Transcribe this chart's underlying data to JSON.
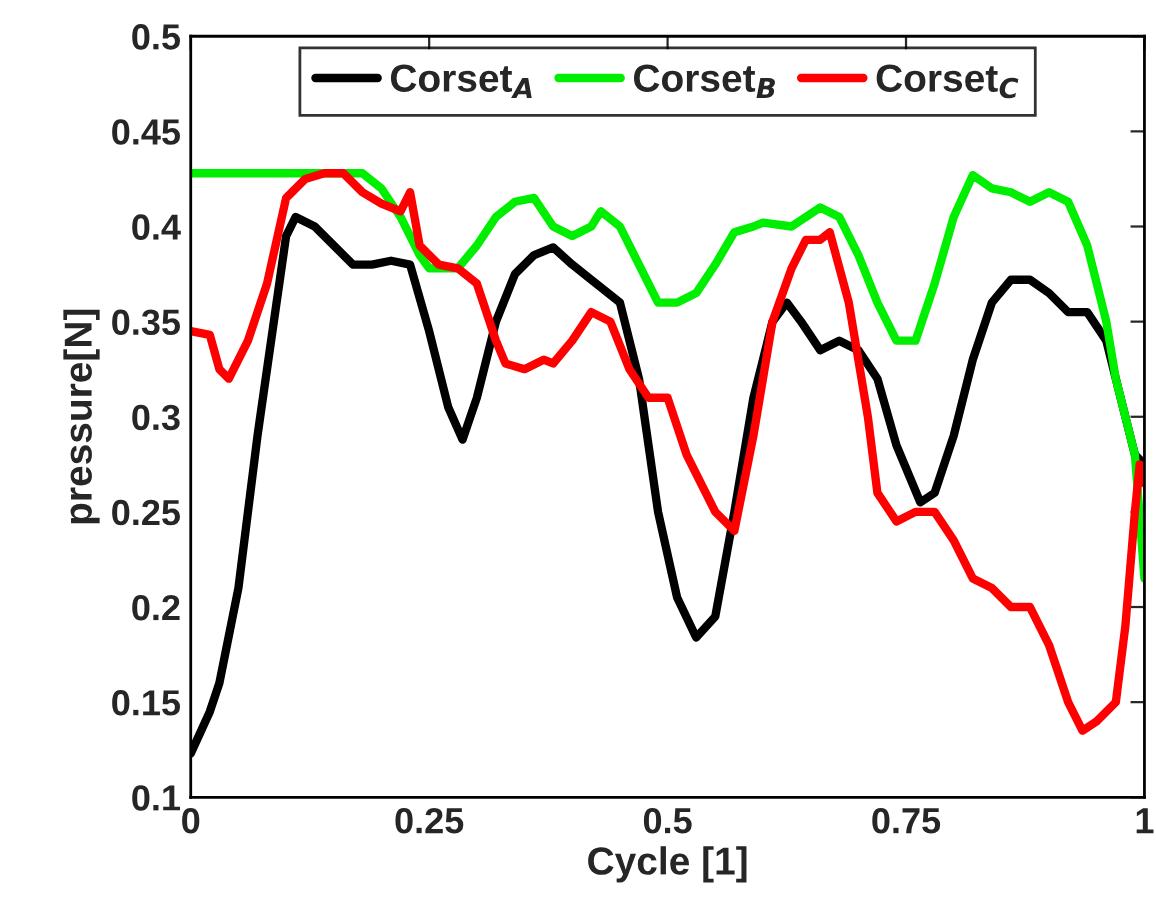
{
  "chart_data": {
    "type": "line",
    "xlabel": "Cycle [1]",
    "ylabel": "pressure[N]",
    "xlim": [
      0,
      1
    ],
    "ylim": [
      0.1,
      0.5
    ],
    "xticks": [
      0,
      0.25,
      0.5,
      0.75,
      1
    ],
    "yticks": [
      0.1,
      0.15,
      0.2,
      0.25,
      0.3,
      0.35,
      0.4,
      0.45,
      0.5
    ],
    "grid": false,
    "legend": "top",
    "marker": "none",
    "line_style": "solid",
    "series": [
      {
        "name": "Corset$_{A}$",
        "color": "#000000",
        "x": [
          0,
          0.02,
          0.03,
          0.05,
          0.07,
          0.09,
          0.1,
          0.11,
          0.13,
          0.15,
          0.17,
          0.19,
          0.21,
          0.23,
          0.25,
          0.27,
          0.285,
          0.3,
          0.32,
          0.34,
          0.36,
          0.38,
          0.4,
          0.42,
          0.45,
          0.47,
          0.49,
          0.51,
          0.53,
          0.55,
          0.57,
          0.59,
          0.61,
          0.625,
          0.64,
          0.66,
          0.68,
          0.7,
          0.72,
          0.74,
          0.765,
          0.78,
          0.8,
          0.82,
          0.84,
          0.86,
          0.88,
          0.9,
          0.92,
          0.94,
          0.96,
          0.98,
          0.99,
          1.0
        ],
        "values": [
          0.123,
          0.145,
          0.16,
          0.21,
          0.29,
          0.36,
          0.395,
          0.405,
          0.4,
          0.39,
          0.38,
          0.38,
          0.382,
          0.38,
          0.345,
          0.305,
          0.288,
          0.31,
          0.35,
          0.375,
          0.385,
          0.389,
          0.38,
          0.372,
          0.36,
          0.32,
          0.25,
          0.205,
          0.184,
          0.195,
          0.25,
          0.31,
          0.35,
          0.36,
          0.35,
          0.335,
          0.34,
          0.335,
          0.32,
          0.285,
          0.255,
          0.26,
          0.29,
          0.33,
          0.36,
          0.372,
          0.372,
          0.365,
          0.355,
          0.355,
          0.34,
          0.3,
          0.28,
          0.275
        ]
      },
      {
        "name": "Corset$_{B}$",
        "color": "#00ee00",
        "x": [
          0,
          0.18,
          0.2,
          0.22,
          0.24,
          0.25,
          0.28,
          0.3,
          0.32,
          0.34,
          0.36,
          0.38,
          0.4,
          0.42,
          0.43,
          0.45,
          0.47,
          0.49,
          0.51,
          0.53,
          0.55,
          0.57,
          0.59,
          0.6,
          0.63,
          0.66,
          0.68,
          0.7,
          0.72,
          0.74,
          0.76,
          0.78,
          0.8,
          0.82,
          0.84,
          0.86,
          0.88,
          0.9,
          0.92,
          0.94,
          0.96,
          0.97,
          0.98,
          0.99,
          1.0
        ],
        "values": [
          0.428,
          0.428,
          0.42,
          0.405,
          0.385,
          0.378,
          0.378,
          0.39,
          0.405,
          0.413,
          0.415,
          0.4,
          0.395,
          0.4,
          0.408,
          0.4,
          0.38,
          0.36,
          0.36,
          0.365,
          0.38,
          0.397,
          0.4,
          0.402,
          0.4,
          0.41,
          0.405,
          0.385,
          0.36,
          0.34,
          0.34,
          0.37,
          0.405,
          0.427,
          0.42,
          0.418,
          0.413,
          0.418,
          0.413,
          0.39,
          0.35,
          0.32,
          0.3,
          0.28,
          0.215
        ]
      },
      {
        "name": "Corset$_{C}$",
        "color": "#ff0000",
        "x": [
          0,
          0.02,
          0.03,
          0.04,
          0.06,
          0.08,
          0.1,
          0.12,
          0.14,
          0.16,
          0.18,
          0.2,
          0.22,
          0.23,
          0.24,
          0.26,
          0.28,
          0.3,
          0.32,
          0.33,
          0.35,
          0.37,
          0.38,
          0.4,
          0.42,
          0.44,
          0.46,
          0.48,
          0.5,
          0.52,
          0.55,
          0.57,
          0.59,
          0.61,
          0.63,
          0.645,
          0.66,
          0.67,
          0.69,
          0.71,
          0.72,
          0.74,
          0.76,
          0.78,
          0.8,
          0.82,
          0.84,
          0.86,
          0.88,
          0.9,
          0.92,
          0.935,
          0.95,
          0.97,
          0.98,
          0.99,
          0.995,
          1.0
        ],
        "values": [
          0.345,
          0.343,
          0.325,
          0.32,
          0.34,
          0.37,
          0.415,
          0.425,
          0.428,
          0.428,
          0.418,
          0.412,
          0.408,
          0.418,
          0.39,
          0.38,
          0.378,
          0.37,
          0.34,
          0.328,
          0.325,
          0.33,
          0.328,
          0.34,
          0.355,
          0.35,
          0.325,
          0.31,
          0.31,
          0.28,
          0.25,
          0.24,
          0.29,
          0.35,
          0.378,
          0.393,
          0.393,
          0.397,
          0.36,
          0.3,
          0.26,
          0.245,
          0.25,
          0.25,
          0.235,
          0.215,
          0.21,
          0.2,
          0.2,
          0.18,
          0.15,
          0.135,
          0.14,
          0.15,
          0.19,
          0.25,
          0.275,
          0.265
        ]
      }
    ]
  }
}
